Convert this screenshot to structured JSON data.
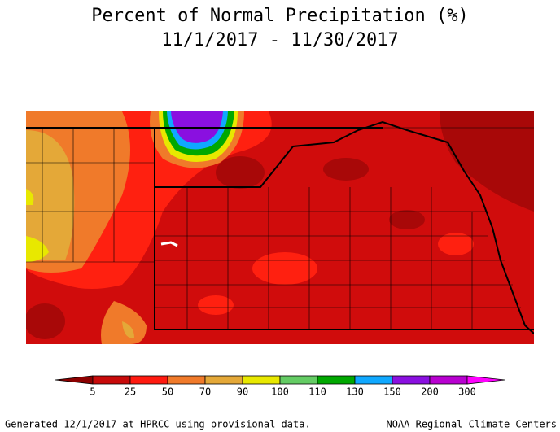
{
  "title": "Percent of Normal Precipitation (%)",
  "subtitle": "11/1/2017 - 11/30/2017",
  "legend": {
    "labels": [
      5,
      25,
      50,
      70,
      90,
      100,
      110,
      130,
      150,
      200,
      300
    ],
    "colors": [
      "#8c0000",
      "#c80a0a",
      "#ff1a10",
      "#f07a2a",
      "#e4a838",
      "#e8e800",
      "#64cc64",
      "#00a800",
      "#10a8ff",
      "#8a10e0",
      "#b800d0",
      "#ff00ff"
    ]
  },
  "footer_left": "Generated 12/1/2017 at HPRCC using provisional data.",
  "footer_right": "NOAA Regional Climate Centers"
}
